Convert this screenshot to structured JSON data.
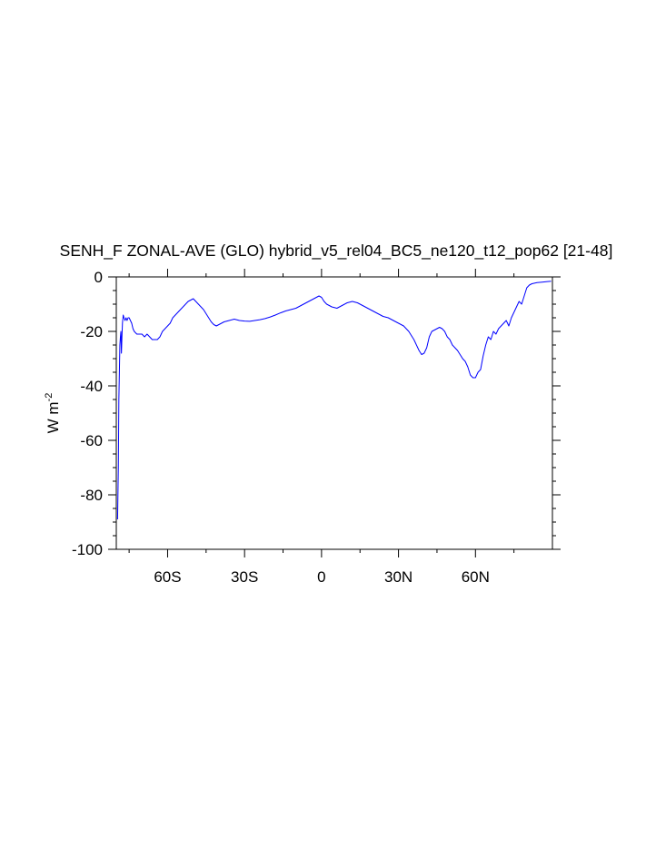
{
  "chart_data": {
    "type": "line",
    "title": "SENH_F ZONAL-AVE (GLO) hybrid_v5_rel04_BC5_ne120_t12_pop62 [21-48]",
    "xlabel": "",
    "ylabel_main": "W m",
    "ylabel_sup": "-2",
    "xlim": [
      -80,
      90
    ],
    "ylim": [
      -100,
      0
    ],
    "x_ticks": [
      {
        "value": -60,
        "label": "60S"
      },
      {
        "value": -30,
        "label": "30S"
      },
      {
        "value": 0,
        "label": "0"
      },
      {
        "value": 30,
        "label": "30N"
      },
      {
        "value": 60,
        "label": "60N"
      }
    ],
    "y_ticks": [
      {
        "value": 0,
        "label": "0"
      },
      {
        "value": -20,
        "label": "-20"
      },
      {
        "value": -40,
        "label": "-40"
      },
      {
        "value": -60,
        "label": "-60"
      },
      {
        "value": -80,
        "label": "-80"
      },
      {
        "value": -100,
        "label": "-100"
      }
    ],
    "grid": false,
    "line_color": "#0000ff",
    "series": [
      {
        "x": [
          -79.5,
          -79.2,
          -79.0,
          -78.8,
          -78.6,
          -78.4,
          -78.2,
          -78.0,
          -77.8,
          -77.6,
          -77.3,
          -77.0,
          -76.6,
          -76.2,
          -75.8,
          -75.4,
          -75.0,
          -74.5,
          -74.0,
          -73.5,
          -73.0,
          -72.0,
          -71.0,
          -70.0,
          -69.0,
          -68.0,
          -67.0,
          -66.0,
          -65.0,
          -64.0,
          -63.0,
          -62.0,
          -61.0,
          -60.0,
          -59.0,
          -58.0,
          -57.0,
          -56.0,
          -55.0,
          -54.0,
          -53.0,
          -52.0,
          -51.0,
          -50.0,
          -49.0,
          -48.0,
          -47.0,
          -46.0,
          -45.0,
          -44.0,
          -43.0,
          -42.0,
          -41.0,
          -40.0,
          -38.0,
          -36.0,
          -34.0,
          -32.0,
          -30.0,
          -28.0,
          -26.0,
          -24.0,
          -22.0,
          -20.0,
          -18.0,
          -16.0,
          -14.0,
          -12.0,
          -10.0,
          -8.0,
          -6.0,
          -4.0,
          -2.0,
          -1.0,
          0.0,
          1.0,
          2.0,
          4.0,
          6.0,
          8.0,
          10.0,
          12.0,
          14.0,
          16.0,
          18.0,
          20.0,
          22.0,
          24.0,
          26.0,
          28.0,
          30.0,
          32.0,
          34.0,
          36.0,
          37.0,
          38.0,
          39.0,
          40.0,
          41.0,
          42.0,
          43.0,
          44.0,
          45.0,
          46.0,
          47.0,
          48.0,
          49.0,
          50.0,
          51.0,
          52.0,
          53.0,
          54.0,
          55.0,
          56.0,
          57.0,
          58.0,
          59.0,
          60.0,
          61.0,
          62.0,
          63.0,
          64.0,
          65.0,
          66.0,
          67.0,
          68.0,
          69.0,
          70.0,
          71.0,
          72.0,
          73.0,
          74.0,
          75.0,
          76.0,
          77.0,
          78.0,
          79.0,
          80.0,
          81.0,
          82.0,
          83.0,
          84.0,
          86.0,
          88.0,
          89.5
        ],
        "y": [
          -89,
          -70,
          -45,
          -35,
          -25,
          -22,
          -20,
          -28,
          -22,
          -17,
          -14,
          -15,
          -16,
          -15,
          -16,
          -15,
          -15,
          -16,
          -17,
          -19,
          -20,
          -21,
          -21,
          -21,
          -22,
          -21,
          -22,
          -23,
          -23,
          -23,
          -22,
          -20,
          -19,
          -18,
          -17,
          -15,
          -14,
          -13,
          -12,
          -11,
          -10,
          -9,
          -8.5,
          -8,
          -9,
          -10,
          -11,
          -12,
          -13.5,
          -15,
          -16.5,
          -17.5,
          -18,
          -17.5,
          -16.5,
          -16,
          -15.5,
          -16,
          -16.2,
          -16.3,
          -16,
          -15.7,
          -15.3,
          -14.7,
          -14,
          -13.2,
          -12.5,
          -12,
          -11.5,
          -10.5,
          -9.5,
          -8.5,
          -7.5,
          -7,
          -7.5,
          -9,
          -10,
          -11,
          -11.5,
          -10.5,
          -9.5,
          -9,
          -9.5,
          -10.5,
          -11.5,
          -12.5,
          -13.5,
          -14.5,
          -15,
          -16,
          -17,
          -18,
          -20,
          -23,
          -25,
          -27,
          -28.5,
          -28,
          -26,
          -22,
          -20,
          -19.5,
          -19,
          -18.5,
          -19,
          -20,
          -22,
          -23,
          -25,
          -26,
          -27,
          -28.5,
          -30,
          -31,
          -33,
          -36,
          -37,
          -37,
          -35,
          -34,
          -29,
          -25,
          -22,
          -23,
          -20,
          -21,
          -19,
          -18,
          -17,
          -16,
          -18,
          -15,
          -13,
          -11,
          -9,
          -10,
          -7,
          -4,
          -3,
          -2.5,
          -2.3,
          -2.1,
          -1.9,
          -1.7,
          -1.6
        ]
      }
    ]
  }
}
